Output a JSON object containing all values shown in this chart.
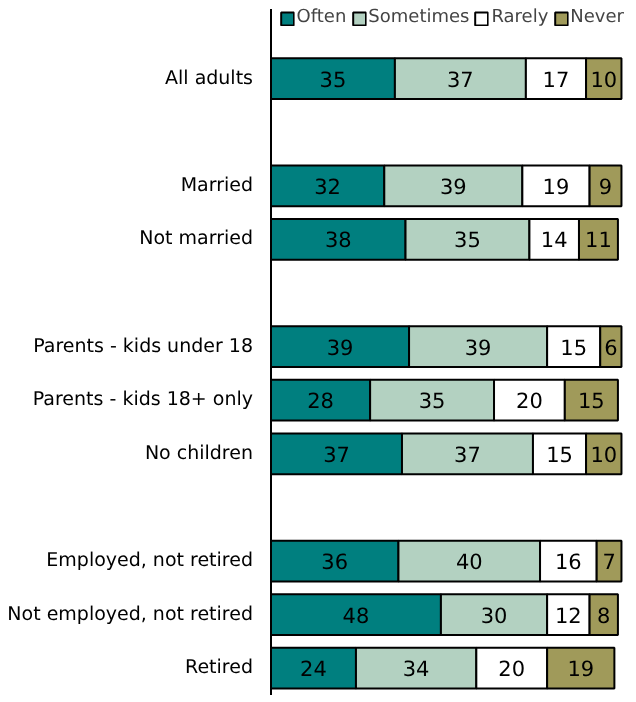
{
  "chart_data": {
    "type": "bar",
    "orientation": "horizontal",
    "stacked": true,
    "data_labels": true,
    "legend": "top right",
    "grid": false,
    "tick_labels": "y",
    "xlim": [
      0,
      100
    ],
    "categories": [
      "All adults",
      null,
      "Married",
      "Not married",
      null,
      "Parents - kids under 18",
      "Parents - kids 18+ only",
      "No children",
      null,
      "Employed, not retired",
      "Not employed, not retired",
      "Retired"
    ],
    "series": [
      {
        "name": "Often",
        "color": "#007f7f",
        "values": [
          35,
          null,
          32,
          38,
          null,
          39,
          28,
          37,
          null,
          36,
          48,
          24
        ]
      },
      {
        "name": "Sometimes",
        "color": "#b3d1c1",
        "values": [
          37,
          null,
          39,
          35,
          null,
          39,
          35,
          37,
          null,
          40,
          30,
          34
        ]
      },
      {
        "name": "Rarely",
        "color": "#ffffff",
        "values": [
          17,
          null,
          19,
          14,
          null,
          15,
          20,
          15,
          null,
          16,
          12,
          20
        ]
      },
      {
        "name": "Never",
        "color": "#a09a5a",
        "values": [
          10,
          null,
          9,
          11,
          null,
          6,
          15,
          10,
          null,
          7,
          8,
          19
        ]
      }
    ]
  }
}
